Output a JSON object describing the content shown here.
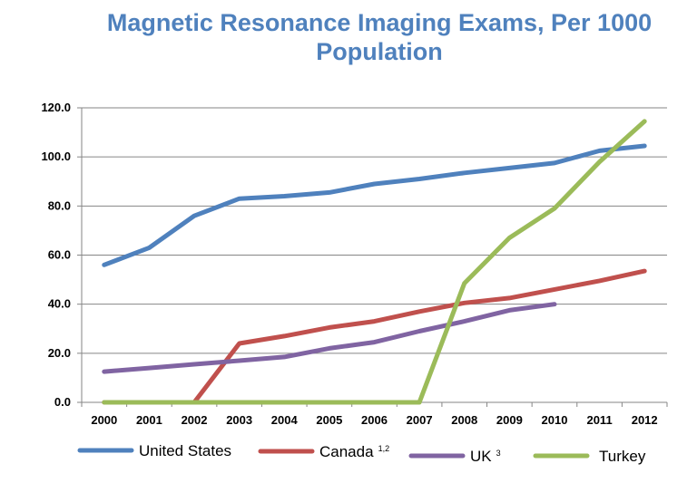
{
  "chart_data": {
    "type": "line",
    "title": "Magnetic Resonance Imaging Exams, Per 1000",
    "title_line2": "Population",
    "title_color": "#4F81BD",
    "categories": [
      "2000",
      "2001",
      "2002",
      "2003",
      "2004",
      "2005",
      "2006",
      "2007",
      "2008",
      "2009",
      "2010",
      "2011",
      "2012"
    ],
    "y_tick_labels": [
      "0.0",
      "20.0",
      "40.0",
      "60.0",
      "80.0",
      "100.0",
      "120.0"
    ],
    "y_ticks": [
      0,
      20,
      40,
      60,
      80,
      100,
      120
    ],
    "ylim": [
      0,
      120
    ],
    "grid": true,
    "legend_position": "bottom",
    "series": [
      {
        "name": "United States",
        "sup": "",
        "color": "#4F81BD",
        "values": [
          56.0,
          63.0,
          76.0,
          83.0,
          84.0,
          85.5,
          89.0,
          91.0,
          93.5,
          95.5,
          97.5,
          102.5,
          104.5
        ]
      },
      {
        "name": "Canada",
        "sup": "1,2",
        "color": "#C0504D",
        "values": [
          0,
          0,
          0,
          24.0,
          27.0,
          30.5,
          33.0,
          37.0,
          40.5,
          42.5,
          46.0,
          49.5,
          53.5
        ]
      },
      {
        "name": "UK",
        "sup": "3",
        "color": "#8064A2",
        "values": [
          12.5,
          14.0,
          15.5,
          17.0,
          18.5,
          22.0,
          24.5,
          29.0,
          33.0,
          37.5,
          40.0,
          null,
          null
        ]
      },
      {
        "name": "Turkey",
        "sup": "",
        "color": "#9BBB59",
        "values": [
          0,
          0,
          0,
          0,
          0,
          0,
          0,
          0,
          48.5,
          67.0,
          79.0,
          98.0,
          114.5
        ]
      }
    ]
  }
}
